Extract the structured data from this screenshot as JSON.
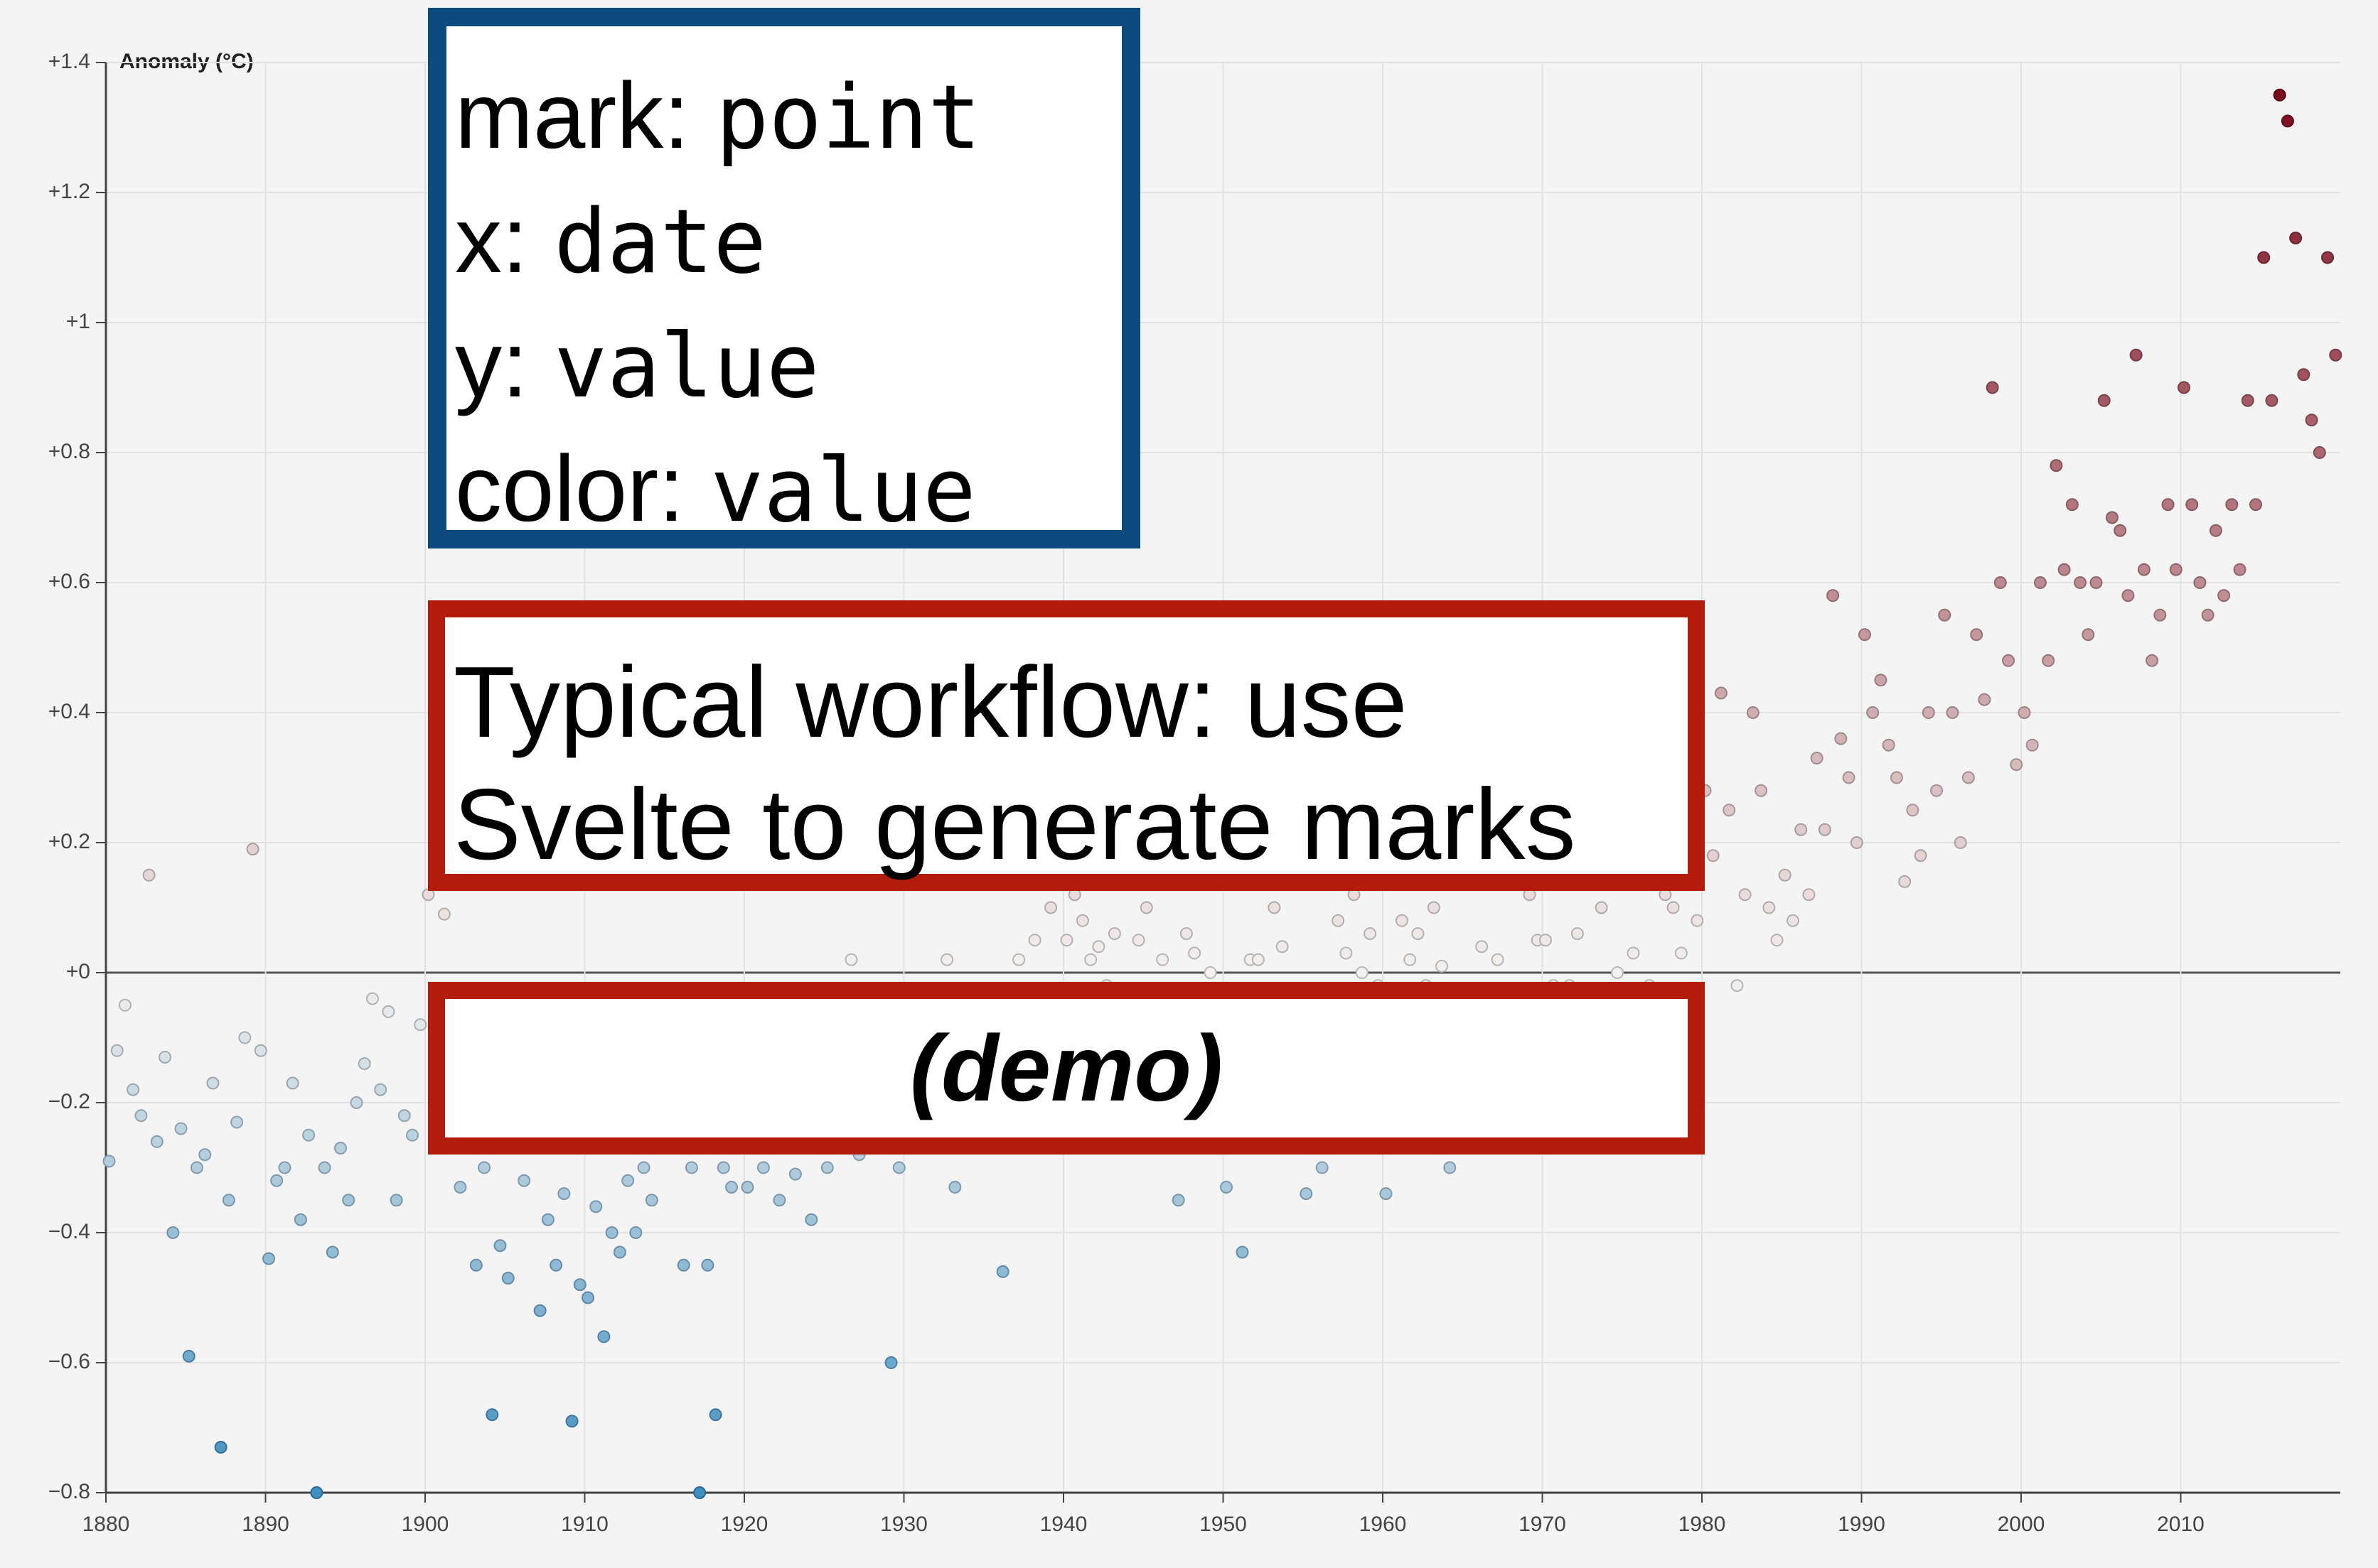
{
  "chart_data": {
    "type": "scatter",
    "ylabel": "Anomaly (°C)",
    "xlim": [
      1880,
      2020
    ],
    "ylim": [
      -0.8,
      1.4
    ],
    "xticks": [
      1880,
      1890,
      1900,
      1910,
      1920,
      1930,
      1940,
      1950,
      1960,
      1970,
      1980,
      1990,
      2000,
      2010
    ],
    "yticks": [
      {
        "value": 1.4,
        "label": "+1.4"
      },
      {
        "value": 1.2,
        "label": "+1.2"
      },
      {
        "value": 1,
        "label": "+1"
      },
      {
        "value": 0.8,
        "label": "+0.8"
      },
      {
        "value": 0.6,
        "label": "+0.6"
      },
      {
        "value": 0.4,
        "label": "+0.4"
      },
      {
        "value": 0.2,
        "label": "+0.2"
      },
      {
        "value": 0,
        "label": "+0"
      },
      {
        "value": -0.2,
        "label": "−0.2"
      },
      {
        "value": -0.4,
        "label": "−0.4"
      },
      {
        "value": -0.6,
        "label": "−0.6"
      },
      {
        "value": -0.8,
        "label": "−0.8"
      }
    ],
    "grid": true,
    "colors": [
      "#3f8fc0",
      "#f4f1ee",
      "#7a0a1d"
    ],
    "x": [
      1880.2,
      1880.7,
      1881.2,
      1881.7,
      1882.2,
      1882.7,
      1883.2,
      1883.7,
      1884.2,
      1884.7,
      1885.2,
      1885.7,
      1886.2,
      1886.7,
      1887.2,
      1887.7,
      1888.2,
      1888.7,
      1889.2,
      1889.7,
      1890.2,
      1890.7,
      1891.2,
      1891.7,
      1892.2,
      1892.7,
      1893.2,
      1893.7,
      1894.2,
      1894.7,
      1895.2,
      1895.7,
      1896.2,
      1896.7,
      1897.2,
      1897.7,
      1898.2,
      1898.7,
      1899.2,
      1899.7,
      1900.2,
      1900.7,
      1901.2,
      1901.7,
      1902.2,
      1902.7,
      1903.2,
      1903.7,
      1904.2,
      1904.7,
      1905.2,
      1905.7,
      1906.2,
      1906.7,
      1907.2,
      1907.7,
      1908.2,
      1908.7,
      1909.2,
      1909.7,
      1910.2,
      1910.7,
      1911.2,
      1911.7,
      1912.2,
      1912.7,
      1913.2,
      1913.7,
      1914.2,
      1914.7,
      1915.2,
      1915.7,
      1916.2,
      1916.7,
      1917.2,
      1917.7,
      1918.2,
      1918.7,
      1919.2,
      1919.7,
      1920.2,
      1920.7,
      1921.2,
      1921.7,
      1922.2,
      1922.7,
      1923.2,
      1923.7,
      1924.2,
      1924.7,
      1925.2,
      1925.7,
      1926.2,
      1926.7,
      1927.2,
      1927.7,
      1928.2,
      1928.7,
      1929.2,
      1929.7,
      1930.2,
      1930.7,
      1931.2,
      1931.7,
      1932.2,
      1932.7,
      1933.2,
      1933.7,
      1934.2,
      1934.7,
      1935.2,
      1935.7,
      1936.2,
      1936.7,
      1937.2,
      1937.7,
      1938.2,
      1938.7,
      1939.2,
      1939.7,
      1940.2,
      1940.7,
      1941.2,
      1941.7,
      1942.2,
      1942.7,
      1943.2,
      1943.7,
      1944.2,
      1944.7,
      1945.2,
      1945.7,
      1946.2,
      1946.7,
      1947.2,
      1947.7,
      1948.2,
      1948.7,
      1949.2,
      1949.7,
      1950.2,
      1950.7,
      1951.2,
      1951.7,
      1952.2,
      1952.7,
      1953.2,
      1953.7,
      1954.2,
      1954.7,
      1955.2,
      1955.7,
      1956.2,
      1956.7,
      1957.2,
      1957.7,
      1958.2,
      1958.7,
      1959.2,
      1959.7,
      1960.2,
      1960.7,
      1961.2,
      1961.7,
      1962.2,
      1962.7,
      1963.2,
      1963.7,
      1964.2,
      1964.7,
      1965.2,
      1965.7,
      1966.2,
      1966.7,
      1967.2,
      1967.7,
      1968.2,
      1968.7,
      1969.2,
      1969.7,
      1970.2,
      1970.7,
      1971.2,
      1971.7,
      1972.2,
      1972.7,
      1973.2,
      1973.7,
      1974.2,
      1974.7,
      1975.2,
      1975.7,
      1976.2,
      1976.7,
      1977.2,
      1977.7,
      1978.2,
      1978.7,
      1979.2,
      1979.7,
      1980.2,
      1980.7,
      1981.2,
      1981.7,
      1982.2,
      1982.7,
      1983.2,
      1983.7,
      1984.2,
      1984.7,
      1985.2,
      1985.7,
      1986.2,
      1986.7,
      1987.2,
      1987.7,
      1988.2,
      1988.7,
      1989.2,
      1989.7,
      1990.2,
      1990.7,
      1991.2,
      1991.7,
      1992.2,
      1992.7,
      1993.2,
      1993.7,
      1994.2,
      1994.7,
      1995.2,
      1995.7,
      1996.2,
      1996.7,
      1997.2,
      1997.7,
      1998.2,
      1998.7,
      1999.2,
      1999.7,
      2000.2,
      2000.7,
      2001.2,
      2001.7,
      2002.2,
      2002.7,
      2003.2,
      2003.7,
      2004.2,
      2004.7,
      2005.2,
      2005.7,
      2006.2,
      2006.7,
      2007.2,
      2007.7,
      2008.2,
      2008.7,
      2009.2,
      2009.7,
      2010.2,
      2010.7,
      2011.2,
      2011.7,
      2012.2,
      2012.7,
      2013.2,
      2013.7,
      2014.2,
      2014.7,
      2015.2,
      2015.7,
      2016.2,
      2016.7,
      2017.2,
      2017.7,
      2018.2,
      2018.7,
      2019.2,
      2019.7
    ],
    "values": [
      -0.29,
      -0.12,
      -0.05,
      -0.18,
      -0.22,
      0.15,
      -0.26,
      -0.13,
      -0.4,
      -0.24,
      -0.59,
      -0.3,
      -0.28,
      -0.17,
      -0.73,
      -0.35,
      -0.23,
      -0.1,
      0.19,
      -0.12,
      -0.44,
      -0.32,
      -0.3,
      -0.17,
      -0.38,
      -0.25,
      -0.8,
      -0.3,
      -0.43,
      -0.27,
      -0.35,
      -0.2,
      -0.14,
      -0.04,
      -0.18,
      -0.06,
      -0.35,
      -0.22,
      -0.25,
      -0.08,
      0.12,
      -0.1,
      0.09,
      -0.16,
      -0.33,
      -0.25,
      -0.45,
      -0.3,
      -0.68,
      -0.42,
      -0.47,
      -0.2,
      -0.32,
      -0.18,
      -0.52,
      -0.38,
      -0.45,
      -0.34,
      -0.69,
      -0.48,
      -0.5,
      -0.36,
      -0.56,
      -0.4,
      -0.43,
      -0.32,
      -0.4,
      -0.3,
      -0.35,
      -0.14,
      -0.25,
      -0.1,
      -0.45,
      -0.3,
      -0.8,
      -0.45,
      -0.68,
      -0.3,
      -0.33,
      -0.2,
      -0.33,
      -0.22,
      -0.3,
      -0.08,
      -0.35,
      -0.22,
      -0.31,
      -0.2,
      -0.38,
      -0.22,
      -0.3,
      -0.1,
      -0.2,
      0.02,
      -0.28,
      -0.15,
      -0.25,
      -0.12,
      -0.6,
      -0.3,
      -0.24,
      -0.1,
      -0.15,
      -0.05,
      -0.2,
      0.02,
      -0.33,
      -0.22,
      -0.22,
      -0.1,
      -0.25,
      -0.14,
      -0.46,
      -0.08,
      0.02,
      -0.05,
      0.05,
      -0.08,
      0.1,
      -0.03,
      0.05,
      0.12,
      0.08,
      0.02,
      0.04,
      -0.02,
      0.06,
      -0.05,
      0.18,
      0.05,
      0.1,
      -0.04,
      0.02,
      -0.08,
      -0.35,
      0.06,
      0.03,
      -0.1,
      0.0,
      -0.12,
      -0.33,
      -0.1,
      -0.43,
      0.02,
      0.02,
      -0.06,
      0.1,
      0.04,
      -0.14,
      -0.05,
      -0.34,
      -0.15,
      -0.3,
      -0.12,
      0.08,
      0.03,
      0.12,
      0.0,
      0.06,
      -0.02,
      -0.34,
      -0.05,
      0.08,
      0.02,
      0.06,
      -0.02,
      0.1,
      0.01,
      -0.3,
      -0.12,
      -0.2,
      -0.08,
      0.04,
      -0.05,
      0.02,
      -0.04,
      -0.04,
      -0.1,
      0.12,
      0.05,
      0.05,
      -0.02,
      -0.08,
      -0.02,
      0.06,
      -0.08,
      0.18,
      0.1,
      -0.1,
      0.0,
      -0.05,
      0.03,
      -0.12,
      -0.02,
      0.22,
      0.12,
      0.1,
      0.03,
      0.2,
      0.08,
      0.28,
      0.18,
      0.43,
      0.25,
      -0.02,
      0.12,
      0.4,
      0.28,
      0.1,
      0.05,
      0.15,
      0.08,
      0.22,
      0.12,
      0.33,
      0.22,
      0.58,
      0.36,
      0.3,
      0.2,
      0.52,
      0.4,
      0.45,
      0.35,
      0.3,
      0.14,
      0.25,
      0.18,
      0.4,
      0.28,
      0.55,
      0.4,
      0.2,
      0.3,
      0.52,
      0.42,
      0.9,
      0.6,
      0.48,
      0.32,
      0.4,
      0.35,
      0.6,
      0.48,
      0.78,
      0.62,
      0.72,
      0.6,
      0.52,
      0.6,
      0.88,
      0.7,
      0.68,
      0.58,
      0.95,
      0.62,
      0.48,
      0.55,
      0.72,
      0.62,
      0.9,
      0.72,
      0.6,
      0.55,
      0.68,
      0.58,
      0.72,
      0.62,
      0.88,
      0.72,
      1.1,
      0.88,
      1.35,
      1.31,
      1.13,
      0.92,
      0.85,
      0.8,
      1.1,
      0.95
    ]
  },
  "annotations": {
    "spec": [
      {
        "key": "mark:",
        "value": "point"
      },
      {
        "key": "x:",
        "value": "date"
      },
      {
        "key": "y:",
        "value": "value"
      },
      {
        "key": "color:",
        "value": "value"
      }
    ],
    "workflow": [
      "Typical workflow: use",
      "Svelte to generate marks"
    ],
    "demo": "(demo)"
  }
}
